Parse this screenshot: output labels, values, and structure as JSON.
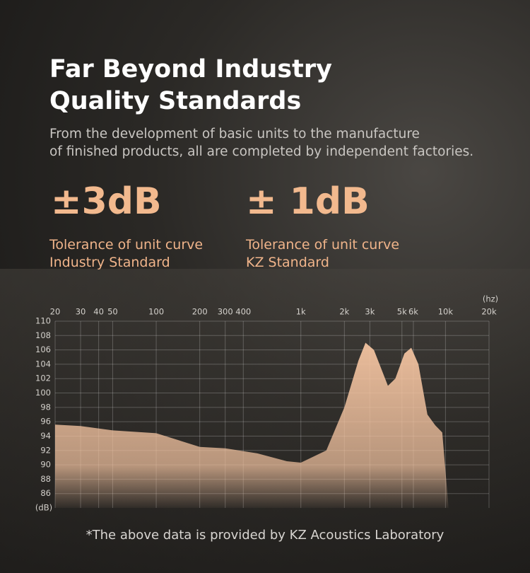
{
  "header": {
    "title": [
      "Far Beyond Industry",
      "Quality Standards"
    ],
    "subtitle": [
      "From the development of basic units to the manufacture",
      "of finished products, all are completed by independent factories."
    ]
  },
  "stats": [
    {
      "value": "±3dB",
      "label": [
        "Tolerance of unit curve",
        "Industry Standard"
      ]
    },
    {
      "value": "± 1dB",
      "label": [
        "Tolerance of unit curve",
        "KZ Standard"
      ]
    }
  ],
  "chart_data": {
    "type": "area",
    "x_unit": "(hz)",
    "y_unit": "(dB)",
    "log_x": true,
    "grid": true,
    "color": "#f3c3a0",
    "x": [
      20,
      30,
      50,
      100,
      200,
      300,
      500,
      800,
      1000,
      1500,
      2000,
      2500,
      2800,
      3200,
      4000,
      4500,
      5200,
      5800,
      6500,
      7500,
      8500,
      9500,
      10500
    ],
    "values": [
      95.6,
      95.4,
      94.8,
      94.4,
      92.5,
      92.3,
      91.6,
      90.5,
      90.3,
      92,
      98,
      104.5,
      107,
      106,
      101,
      102,
      105.5,
      106.3,
      104,
      97,
      95.5,
      94.5,
      84
    ],
    "xlim": [
      20,
      20000
    ],
    "ylim": [
      84,
      110
    ],
    "xticks": [
      20,
      30,
      40,
      50,
      100,
      200,
      300,
      400,
      {
        "value": 1000,
        "label": "1k"
      },
      {
        "value": 2000,
        "label": "2k"
      },
      {
        "value": 3000,
        "label": "3k"
      },
      {
        "value": 5000,
        "label": "5k"
      },
      {
        "value": 6000,
        "label": "6k"
      },
      {
        "value": 10000,
        "label": "10k"
      },
      {
        "value": 20000,
        "label": "20k"
      }
    ],
    "yticks": [
      86,
      88,
      90,
      92,
      94,
      96,
      98,
      100,
      102,
      104,
      106,
      108,
      110
    ]
  },
  "footnote": "*The above data is provided by KZ Acoustics Laboratory"
}
